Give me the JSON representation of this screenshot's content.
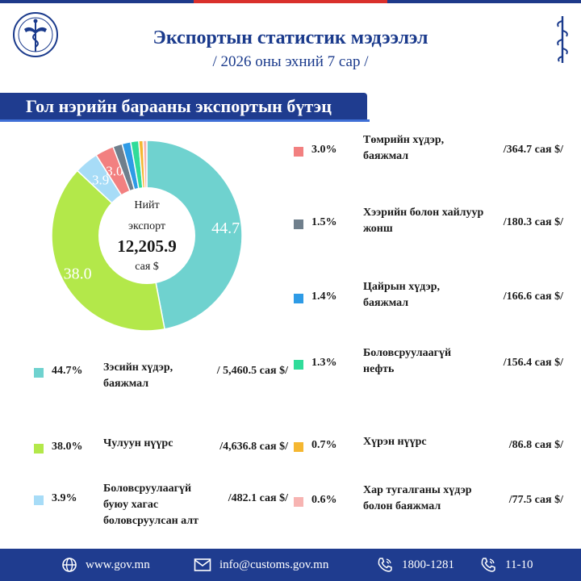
{
  "header": {
    "title": "Экспортын статистик мэдээлэл",
    "subtitle": "/ 2026 оны эхний 7 сар /"
  },
  "banner": {
    "text": "Гол нэрийн барааны экспортын бүтэц"
  },
  "center": {
    "line1": "Нийт",
    "line2": "экспорт",
    "total": "12,205.9",
    "unit": "сая $"
  },
  "chart_data": {
    "type": "pie",
    "donut": true,
    "categories": [
      "Зэсийн хүдэр, баяжмал",
      "Чулуун нүүрс",
      "Боловсруулаагүй буюу хагас боловсруулсан алт",
      "Төмрийн хүдэр, баяжмал",
      "Хээрийн болон хайлуур жонш",
      "Цайрын хүдэр, баяжмал",
      "Боловсруулаагүй нефть",
      "Хүрэн нүүрс",
      "Хар тугалганы хүдэр болон баяжмал"
    ],
    "values": [
      44.7,
      38.0,
      3.9,
      3.0,
      1.5,
      1.4,
      1.3,
      0.7,
      0.6
    ],
    "pie_labels": [
      "44.7",
      "38.0",
      "3.9",
      "3.0"
    ],
    "colors": [
      "#6fd2cf",
      "#b3e84a",
      "#a7dcf7",
      "#f28080",
      "#6f7f8c",
      "#2e9be6",
      "#30dc9a",
      "#f5b731",
      "#f7b4b2"
    ]
  },
  "legend": [
    {
      "pct": "44.7%",
      "name": "Зэсийн хүдэр, баяжмал",
      "value": "/ 5,460.5 сая $/"
    },
    {
      "pct": "38.0%",
      "name": "Чулуун нүүрс",
      "value": "/4,636.8 сая $/"
    },
    {
      "pct": "3.9%",
      "name": "Боловсруулаагүй буюу хагас боловсруулсан алт",
      "value": "/482.1 сая $/"
    },
    {
      "pct": "3.0%",
      "name": "Төмрийн хүдэр, баяжмал",
      "value": "/364.7 сая $/"
    },
    {
      "pct": "1.5%",
      "name": "Хээрийн болон хайлуур жонш",
      "value": "/180.3 сая $/"
    },
    {
      "pct": "1.4%",
      "name": "Цайрын хүдэр, баяжмал",
      "value": "/166.6 сая $/"
    },
    {
      "pct": "1.3%",
      "name": "Боловсруулаагүй нефть",
      "value": "/156.4 сая $/"
    },
    {
      "pct": "0.7%",
      "name": "Хүрэн нүүрс",
      "value": "/86.8 сая $/"
    },
    {
      "pct": "0.6%",
      "name": "Хар тугалганы хүдэр болон баяжмал",
      "value": "/77.5 сая $/"
    }
  ],
  "footer": {
    "web": "www.gov.mn",
    "email": "info@customs.gov.mn",
    "phone1": "1800-1281",
    "phone2": "11-10",
    "icons": [
      "globe-icon",
      "mail-icon",
      "phone-icon",
      "phone-icon"
    ]
  }
}
